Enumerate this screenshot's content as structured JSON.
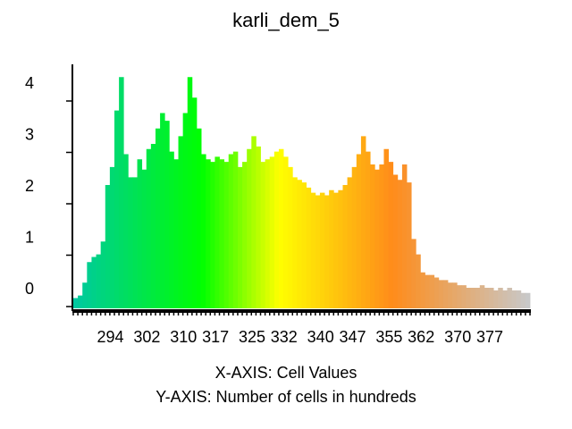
{
  "chart_data": {
    "type": "bar",
    "title": "karli_dem_5",
    "xlabel": "X-AXIS: Cell Values",
    "ylabel": "Y-AXIS: Number of cells in hundreds",
    "x_ticks": [
      "294",
      "302",
      "310",
      "317",
      "325",
      "332",
      "340",
      "347",
      "355",
      "362",
      "370",
      "377"
    ],
    "y_ticks": [
      "0",
      "1",
      "2",
      "3",
      "4"
    ],
    "xlim": [
      285.7,
      386.0
    ],
    "ylim": [
      0,
      4.5
    ],
    "color_ramp": [
      "#00c9a0",
      "#00ff00",
      "#ffff00",
      "#ff8c1a",
      "#c8c8c8"
    ],
    "x": [
      286,
      287,
      288,
      289,
      290,
      291,
      292,
      293,
      294,
      295,
      296,
      297,
      298,
      299,
      300,
      301,
      302,
      303,
      304,
      305,
      306,
      307,
      308,
      309,
      310,
      311,
      312,
      313,
      314,
      315,
      316,
      317,
      318,
      319,
      320,
      321,
      322,
      323,
      324,
      325,
      326,
      327,
      328,
      329,
      330,
      331,
      332,
      333,
      334,
      335,
      336,
      337,
      338,
      339,
      340,
      341,
      342,
      343,
      344,
      345,
      346,
      347,
      348,
      349,
      350,
      351,
      352,
      353,
      354,
      355,
      356,
      357,
      358,
      359,
      360,
      361,
      362,
      363,
      364,
      365,
      366,
      367,
      368,
      369,
      370,
      371,
      372,
      373,
      374,
      375,
      376,
      377,
      378,
      379,
      380,
      381,
      382,
      383,
      384,
      385
    ],
    "values": [
      0.2,
      0.25,
      0.5,
      0.9,
      1.0,
      1.05,
      1.3,
      2.4,
      2.75,
      3.85,
      4.5,
      3.0,
      2.55,
      2.55,
      2.9,
      2.7,
      3.1,
      3.2,
      3.5,
      3.8,
      3.65,
      3.05,
      2.9,
      3.35,
      3.8,
      4.5,
      4.1,
      3.5,
      3.0,
      2.9,
      2.85,
      2.95,
      2.9,
      2.85,
      3.0,
      3.05,
      2.75,
      2.85,
      3.1,
      3.35,
      3.15,
      2.85,
      2.9,
      2.95,
      3.05,
      3.1,
      2.95,
      2.75,
      2.55,
      2.5,
      2.45,
      2.35,
      2.25,
      2.2,
      2.25,
      2.2,
      2.3,
      2.25,
      2.3,
      2.4,
      2.55,
      2.75,
      3.0,
      3.35,
      3.05,
      2.8,
      2.7,
      2.8,
      3.1,
      2.85,
      2.6,
      2.5,
      2.8,
      2.45,
      1.35,
      1.05,
      0.7,
      0.65,
      0.65,
      0.6,
      0.55,
      0.55,
      0.5,
      0.5,
      0.45,
      0.45,
      0.4,
      0.4,
      0.4,
      0.45,
      0.4,
      0.4,
      0.35,
      0.4,
      0.35,
      0.4,
      0.35,
      0.35,
      0.3,
      0.3
    ]
  }
}
